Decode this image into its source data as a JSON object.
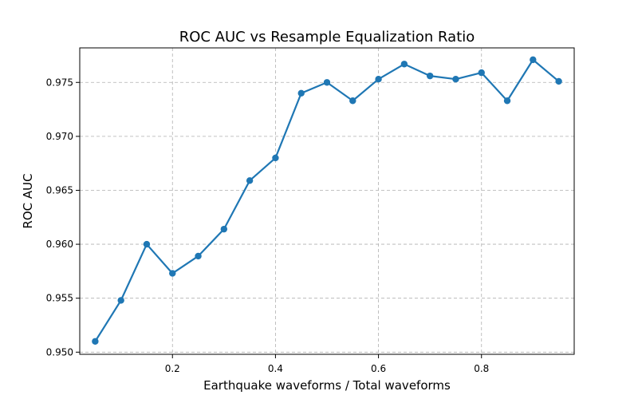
{
  "chart_data": {
    "type": "line",
    "title": "ROC AUC vs Resample Equalization Ratio",
    "xlabel": "Earthquake waveforms / Total waveforms",
    "ylabel": "ROC AUC",
    "xlim": [
      0.02,
      0.98
    ],
    "ylim": [
      0.9498,
      0.9782
    ],
    "x_ticks": [
      0.2,
      0.4,
      0.6,
      0.8
    ],
    "x_tick_labels": [
      "0.2",
      "0.4",
      "0.6",
      "0.8"
    ],
    "y_ticks": [
      0.95,
      0.955,
      0.96,
      0.965,
      0.97,
      0.975
    ],
    "y_tick_labels": [
      "0.950",
      "0.955",
      "0.960",
      "0.965",
      "0.970",
      "0.975"
    ],
    "grid": true,
    "series": [
      {
        "color": "#1f77b4",
        "x": [
          0.05,
          0.1,
          0.15,
          0.2,
          0.25,
          0.3,
          0.35,
          0.4,
          0.45,
          0.5,
          0.55,
          0.6,
          0.65,
          0.7,
          0.75,
          0.8,
          0.85,
          0.9,
          0.95
        ],
        "y": [
          0.951,
          0.9548,
          0.96,
          0.9573,
          0.9589,
          0.9614,
          0.9659,
          0.968,
          0.974,
          0.975,
          0.9733,
          0.9753,
          0.9767,
          0.9756,
          0.9753,
          0.9759,
          0.9733,
          0.9771,
          0.9751
        ]
      }
    ]
  }
}
